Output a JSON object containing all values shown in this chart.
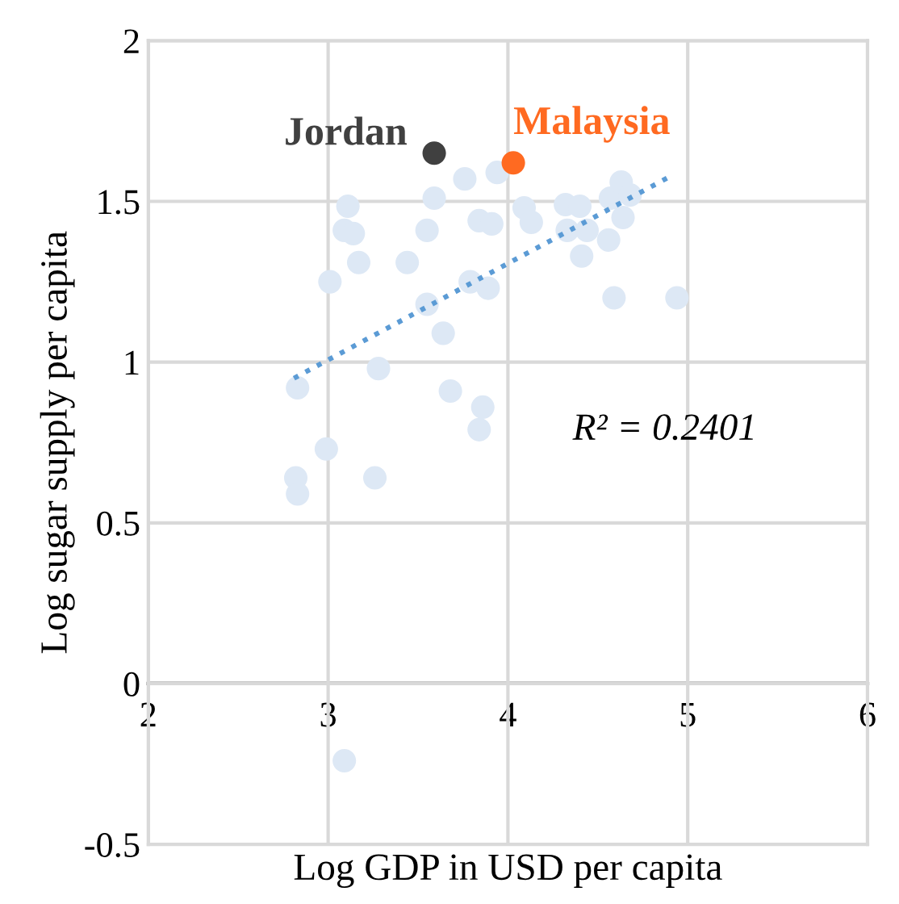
{
  "chart_data": {
    "type": "scatter",
    "xlabel": "Log GDP in USD per capita",
    "ylabel": "Log sugar supply per capita",
    "xlim": [
      2,
      6
    ],
    "ylim": [
      -0.5,
      2
    ],
    "xticks": [
      2,
      3,
      4,
      5,
      6
    ],
    "yticks": [
      -0.5,
      0,
      0.5,
      1,
      1.5,
      2
    ],
    "grid": true,
    "marker": "circle",
    "legend": false,
    "series": [
      {
        "color": "#dde8f5",
        "x": [
          3.76,
          3.11,
          3.59,
          3.09,
          3.14,
          3.55,
          3.17,
          3.44,
          3.01,
          3.55,
          3.64,
          3.28,
          2.83,
          3.68,
          2.99,
          2.82,
          2.83,
          3.26,
          3.79,
          3.94,
          3.84,
          3.91,
          4.09,
          4.13,
          4.32,
          4.4,
          4.33,
          4.44,
          4.41,
          4.56,
          4.57,
          4.63,
          4.68,
          4.64,
          3.89,
          4.59,
          4.94,
          3.86,
          3.84,
          3.09
        ],
        "values": [
          1.57,
          1.485,
          1.51,
          1.41,
          1.4,
          1.41,
          1.31,
          1.31,
          1.25,
          1.18,
          1.09,
          0.98,
          0.92,
          0.91,
          0.73,
          0.64,
          0.59,
          0.64,
          1.25,
          1.59,
          1.44,
          1.43,
          1.48,
          1.435,
          1.49,
          1.485,
          1.41,
          1.41,
          1.33,
          1.38,
          1.51,
          1.56,
          1.52,
          1.45,
          1.23,
          1.2,
          1.2,
          0.86,
          0.79,
          -0.24
        ]
      },
      {
        "name": "Jordan",
        "color": "#404040",
        "x": [
          3.59
        ],
        "values": [
          1.65
        ]
      },
      {
        "name": "Malaysia",
        "color": "#ff6a21",
        "x": [
          4.03
        ],
        "values": [
          1.62
        ]
      },
      {
        "type": "line",
        "color": "#5b9bd5",
        "line_style": "dotted",
        "marker": "none",
        "x": [
          2.81,
          4.91
        ],
        "values": [
          0.95,
          1.58
        ]
      }
    ],
    "annotations": [
      "R² = 0.2401"
    ]
  }
}
